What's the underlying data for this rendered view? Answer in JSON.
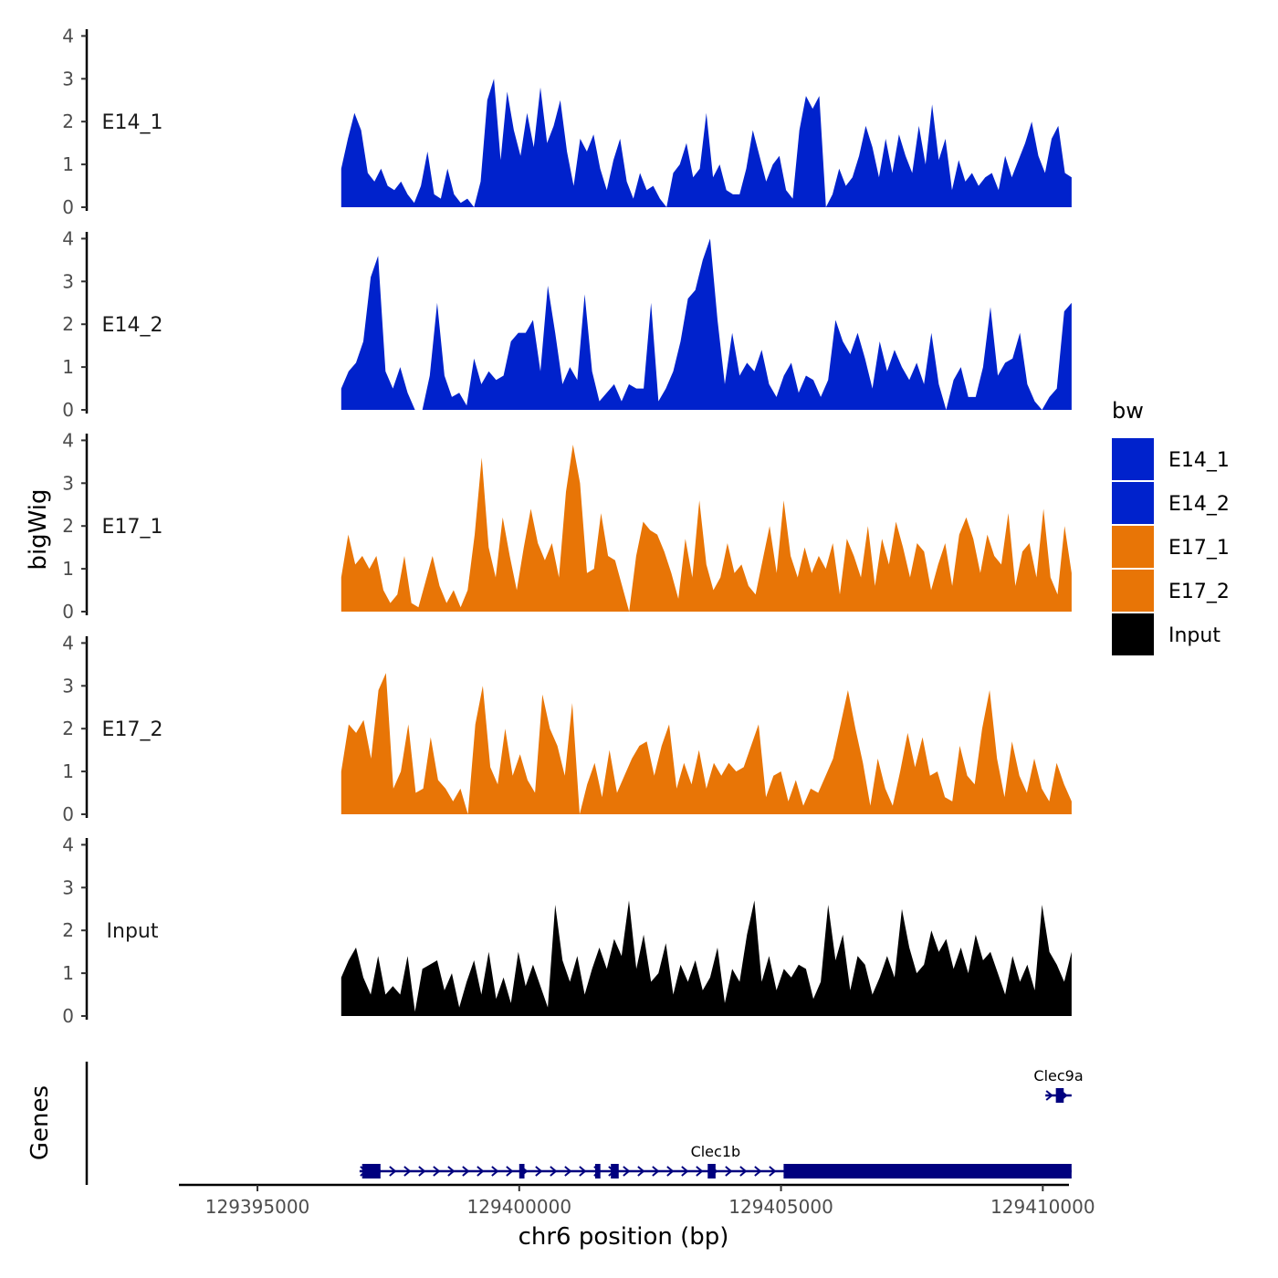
{
  "chart_data": {
    "type": "area",
    "xlabel": "chr6 position (bp)",
    "ylabel": "bigWig",
    "genes_label": "Genes",
    "xlim": [
      129393500,
      129410500
    ],
    "ylim": [
      0,
      4.2
    ],
    "x_ticks": [
      {
        "value": 129395000,
        "label": "129395000"
      },
      {
        "value": 129400000,
        "label": "129400000"
      },
      {
        "value": 129405000,
        "label": "129405000"
      },
      {
        "value": 129410000,
        "label": "129410000"
      }
    ],
    "y_ticks": [
      {
        "value": 0,
        "label": "0"
      },
      {
        "value": 1,
        "label": "1"
      },
      {
        "value": 2,
        "label": "2"
      },
      {
        "value": 3,
        "label": "3"
      },
      {
        "value": 4,
        "label": "4"
      }
    ],
    "legend": {
      "title": "bw",
      "entries": [
        {
          "name": "E14_1",
          "color": "#0022cc"
        },
        {
          "name": "E14_2",
          "color": "#0022cc"
        },
        {
          "name": "E17_1",
          "color": "#e87506"
        },
        {
          "name": "E17_2",
          "color": "#e87506"
        },
        {
          "name": "Input",
          "color": "#000000"
        }
      ]
    },
    "x_start": 129396600,
    "x_end": 129410550,
    "series": [
      {
        "name": "E14_1",
        "color": "#0022cc",
        "values": [
          0.9,
          1.6,
          2.2,
          1.8,
          0.8,
          0.6,
          0.9,
          0.5,
          0.4,
          0.6,
          0.3,
          0.1,
          0.5,
          1.3,
          0.3,
          0.2,
          0.9,
          0.3,
          0.1,
          0.2,
          0.0,
          0.6,
          2.5,
          3.0,
          1.1,
          2.7,
          1.8,
          1.2,
          2.2,
          1.4,
          2.8,
          1.5,
          1.9,
          2.5,
          1.3,
          0.5,
          1.6,
          1.3,
          1.7,
          0.9,
          0.4,
          1.1,
          1.6,
          0.6,
          0.2,
          0.8,
          0.4,
          0.5,
          0.2,
          0.0,
          0.8,
          1.0,
          1.5,
          0.7,
          0.9,
          2.2,
          0.7,
          1.0,
          0.4,
          0.3,
          0.3,
          0.9,
          1.8,
          1.2,
          0.6,
          1.0,
          1.2,
          0.4,
          0.2,
          1.8,
          2.6,
          2.3,
          2.6,
          0.0,
          0.3,
          0.9,
          0.5,
          0.7,
          1.2,
          1.9,
          1.4,
          0.7,
          1.6,
          0.8,
          1.7,
          1.2,
          0.8,
          1.9,
          1.0,
          2.4,
          1.1,
          1.6,
          0.4,
          1.1,
          0.6,
          0.8,
          0.5,
          0.7,
          0.8,
          0.4,
          1.2,
          0.7,
          1.1,
          1.5,
          2.0,
          1.2,
          0.8,
          1.6,
          1.9,
          0.8,
          0.7
        ]
      },
      {
        "name": "E14_2",
        "color": "#0022cc",
        "values": [
          0.5,
          0.9,
          1.1,
          1.6,
          3.1,
          3.6,
          0.9,
          0.5,
          1.0,
          0.4,
          0.0,
          0.0,
          0.8,
          2.5,
          0.8,
          0.3,
          0.4,
          0.1,
          1.2,
          0.6,
          0.9,
          0.7,
          0.8,
          1.6,
          1.8,
          1.8,
          2.1,
          0.9,
          2.9,
          1.8,
          0.6,
          1.0,
          0.7,
          2.7,
          0.9,
          0.2,
          0.4,
          0.6,
          0.2,
          0.6,
          0.5,
          0.5,
          2.5,
          0.2,
          0.5,
          0.9,
          1.6,
          2.6,
          2.8,
          3.5,
          4.0,
          2.1,
          0.6,
          1.8,
          0.8,
          1.1,
          0.9,
          1.4,
          0.6,
          0.3,
          0.8,
          1.1,
          0.4,
          0.8,
          0.7,
          0.3,
          0.7,
          2.1,
          1.6,
          1.3,
          1.8,
          1.2,
          0.5,
          1.6,
          0.9,
          1.4,
          1.0,
          0.7,
          1.1,
          0.6,
          1.8,
          0.6,
          0.0,
          0.7,
          1.0,
          0.3,
          0.3,
          1.0,
          2.4,
          0.8,
          1.1,
          1.2,
          1.8,
          0.6,
          0.2,
          0.0,
          0.3,
          0.5,
          2.3,
          2.5
        ]
      },
      {
        "name": "E17_1",
        "color": "#e87506",
        "values": [
          0.8,
          1.8,
          1.1,
          1.3,
          1.0,
          1.3,
          0.5,
          0.2,
          0.4,
          1.3,
          0.2,
          0.1,
          0.7,
          1.3,
          0.6,
          0.2,
          0.5,
          0.1,
          0.5,
          1.8,
          3.6,
          1.5,
          0.8,
          2.2,
          1.3,
          0.5,
          1.5,
          2.4,
          1.6,
          1.2,
          1.6,
          0.8,
          2.8,
          3.9,
          3.0,
          0.9,
          1.0,
          2.3,
          1.3,
          1.2,
          0.6,
          0.0,
          1.3,
          2.1,
          1.9,
          1.8,
          1.4,
          0.9,
          0.3,
          1.7,
          0.8,
          2.6,
          1.1,
          0.5,
          0.8,
          1.6,
          0.9,
          1.1,
          0.6,
          0.4,
          1.2,
          2.0,
          0.9,
          2.6,
          1.3,
          0.8,
          1.5,
          0.9,
          1.3,
          1.0,
          1.6,
          0.4,
          1.7,
          1.3,
          0.8,
          2.0,
          0.6,
          1.7,
          1.1,
          2.1,
          1.5,
          0.8,
          1.6,
          1.4,
          0.5,
          1.1,
          1.6,
          0.6,
          1.8,
          2.2,
          1.7,
          0.9,
          1.8,
          1.3,
          1.1,
          2.3,
          0.6,
          1.4,
          1.6,
          0.8,
          2.4,
          0.8,
          0.4,
          2.0,
          0.9
        ]
      },
      {
        "name": "E17_2",
        "color": "#e87506",
        "values": [
          1.0,
          2.1,
          1.9,
          2.2,
          1.3,
          2.9,
          3.3,
          0.6,
          1.0,
          2.1,
          0.5,
          0.6,
          1.8,
          0.8,
          0.6,
          0.3,
          0.6,
          0.0,
          2.1,
          3.0,
          1.1,
          0.7,
          2.0,
          0.9,
          1.4,
          0.8,
          0.5,
          2.8,
          2.0,
          1.6,
          0.9,
          2.6,
          0.0,
          0.7,
          1.2,
          0.4,
          1.5,
          0.5,
          0.9,
          1.3,
          1.6,
          1.7,
          0.9,
          1.6,
          2.1,
          0.6,
          1.2,
          0.7,
          1.5,
          0.6,
          1.2,
          0.9,
          1.2,
          1.0,
          1.1,
          1.6,
          2.1,
          0.4,
          0.9,
          1.0,
          0.3,
          0.8,
          0.2,
          0.6,
          0.5,
          0.9,
          1.3,
          2.1,
          2.9,
          2.0,
          1.2,
          0.2,
          1.3,
          0.6,
          0.2,
          1.0,
          1.9,
          1.1,
          1.8,
          0.9,
          1.0,
          0.4,
          0.3,
          1.6,
          0.9,
          0.7,
          2.0,
          2.9,
          1.3,
          0.4,
          1.7,
          0.9,
          0.5,
          1.3,
          0.6,
          0.3,
          1.2,
          0.7,
          0.3
        ]
      },
      {
        "name": "Input",
        "color": "#000000",
        "values": [
          0.9,
          1.3,
          1.6,
          0.9,
          0.5,
          1.4,
          0.5,
          0.7,
          0.5,
          1.4,
          0.1,
          1.1,
          1.2,
          1.3,
          0.6,
          1.0,
          0.2,
          0.8,
          1.3,
          0.5,
          1.5,
          0.4,
          0.9,
          0.3,
          1.5,
          0.7,
          1.2,
          0.7,
          0.2,
          2.6,
          1.3,
          0.8,
          1.4,
          0.5,
          1.1,
          1.6,
          1.1,
          1.8,
          1.4,
          2.7,
          1.1,
          1.9,
          0.8,
          1.0,
          1.7,
          0.5,
          1.2,
          0.8,
          1.3,
          0.6,
          0.9,
          1.6,
          0.3,
          1.1,
          0.8,
          1.9,
          2.7,
          0.8,
          1.4,
          0.6,
          1.1,
          0.9,
          1.2,
          1.1,
          0.4,
          0.8,
          2.6,
          1.3,
          1.9,
          0.6,
          1.4,
          1.2,
          0.5,
          0.9,
          1.4,
          0.9,
          2.5,
          1.6,
          1.0,
          1.2,
          2.0,
          1.5,
          1.8,
          1.1,
          1.6,
          1.0,
          1.9,
          1.3,
          1.5,
          1.0,
          0.5,
          1.4,
          0.8,
          1.2,
          0.6,
          2.6,
          1.5,
          1.2,
          0.8,
          1.5
        ]
      }
    ],
    "genes": [
      {
        "name": "Clec1b",
        "start": 129396950,
        "end": 129410550,
        "strand": "+",
        "exons": [
          [
            129397000,
            129397350
          ],
          [
            129400000,
            129400100
          ],
          [
            129401450,
            129401550
          ],
          [
            129401750,
            129401900
          ],
          [
            129403600,
            129403750
          ],
          [
            129405050,
            129410550
          ]
        ]
      },
      {
        "name": "Clec9a",
        "start": 129410050,
        "end": 129410550,
        "strand": "+",
        "exons": [
          [
            129410250,
            129410400
          ]
        ]
      }
    ]
  }
}
